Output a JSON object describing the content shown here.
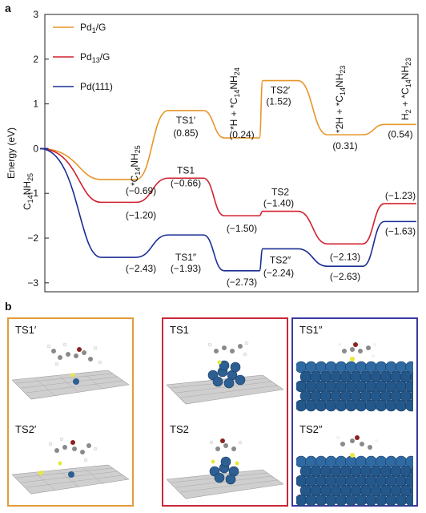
{
  "panel_labels": {
    "a": "a",
    "b": "b"
  },
  "chart_data": {
    "type": "line",
    "ylabel": "Energy (eV)",
    "ylim": [
      -3.2,
      3
    ],
    "yticks": [
      3,
      2,
      1,
      0,
      -1,
      -2,
      -3
    ],
    "legend_position": "top-left",
    "colors": {
      "Pd1/G": "#e8962a",
      "Pd13/G": "#d1202e",
      "Pd(111)": "#1c2e94"
    },
    "stage_labels": [
      "C14NH25",
      "*C14NH25",
      "TS1′",
      "*H + *C14NH24",
      "TS2′",
      "*2H + *C14NH23",
      "H2 + *C14NH23"
    ],
    "series": [
      {
        "name": "Pd1/G",
        "legend_base": "Pd",
        "legend_sub": "1",
        "legend_tail": "/G",
        "values": [
          0,
          -0.69,
          0.85,
          0.24,
          1.52,
          0.31,
          0.54
        ],
        "labels": [
          "",
          "(−0.69)",
          "(0.85)",
          "(0.24)",
          "(1.52)",
          "(0.31)",
          "(0.54)"
        ],
        "names": [
          "",
          "",
          "TS1′",
          "",
          "TS2′",
          "",
          ""
        ]
      },
      {
        "name": "Pd13/G",
        "legend_base": "Pd",
        "legend_sub": "13",
        "legend_tail": "/G",
        "values": [
          0,
          -1.2,
          -0.66,
          -1.5,
          -1.4,
          -2.13,
          -1.23
        ],
        "labels": [
          "",
          "(−1.20)",
          "(−0.66)",
          "(−1.50)",
          "(−1.40)",
          "(−2.13)",
          "(−1.23)"
        ],
        "names": [
          "",
          "",
          "TS1",
          "",
          "TS2",
          "",
          ""
        ]
      },
      {
        "name": "Pd(111)",
        "legend_base": "Pd(111)",
        "legend_sub": "",
        "legend_tail": "",
        "values": [
          0,
          -2.43,
          -1.93,
          -2.73,
          -2.24,
          -2.63,
          -1.63
        ],
        "labels": [
          "",
          "(−2.43)",
          "(−1.93)",
          "(−2.73)",
          "(−2.24)",
          "(−2.63)",
          "(−1.63)"
        ],
        "names": [
          "",
          "",
          "TS1″",
          "",
          "TS2″",
          "",
          ""
        ]
      }
    ]
  },
  "structures": [
    {
      "label_top": "TS1′",
      "label_bottom": "TS2′",
      "border_color": "#e39b3b",
      "substrate": "graphene",
      "cluster": "single"
    },
    {
      "label_top": "TS1",
      "label_bottom": "TS2",
      "border_color": "#c8283a",
      "substrate": "graphene",
      "cluster": "cluster"
    },
    {
      "label_top": "TS1″",
      "label_bottom": "TS2″",
      "border_color": "#3a3aa0",
      "substrate": "pd-surface",
      "cluster": "surface"
    }
  ]
}
